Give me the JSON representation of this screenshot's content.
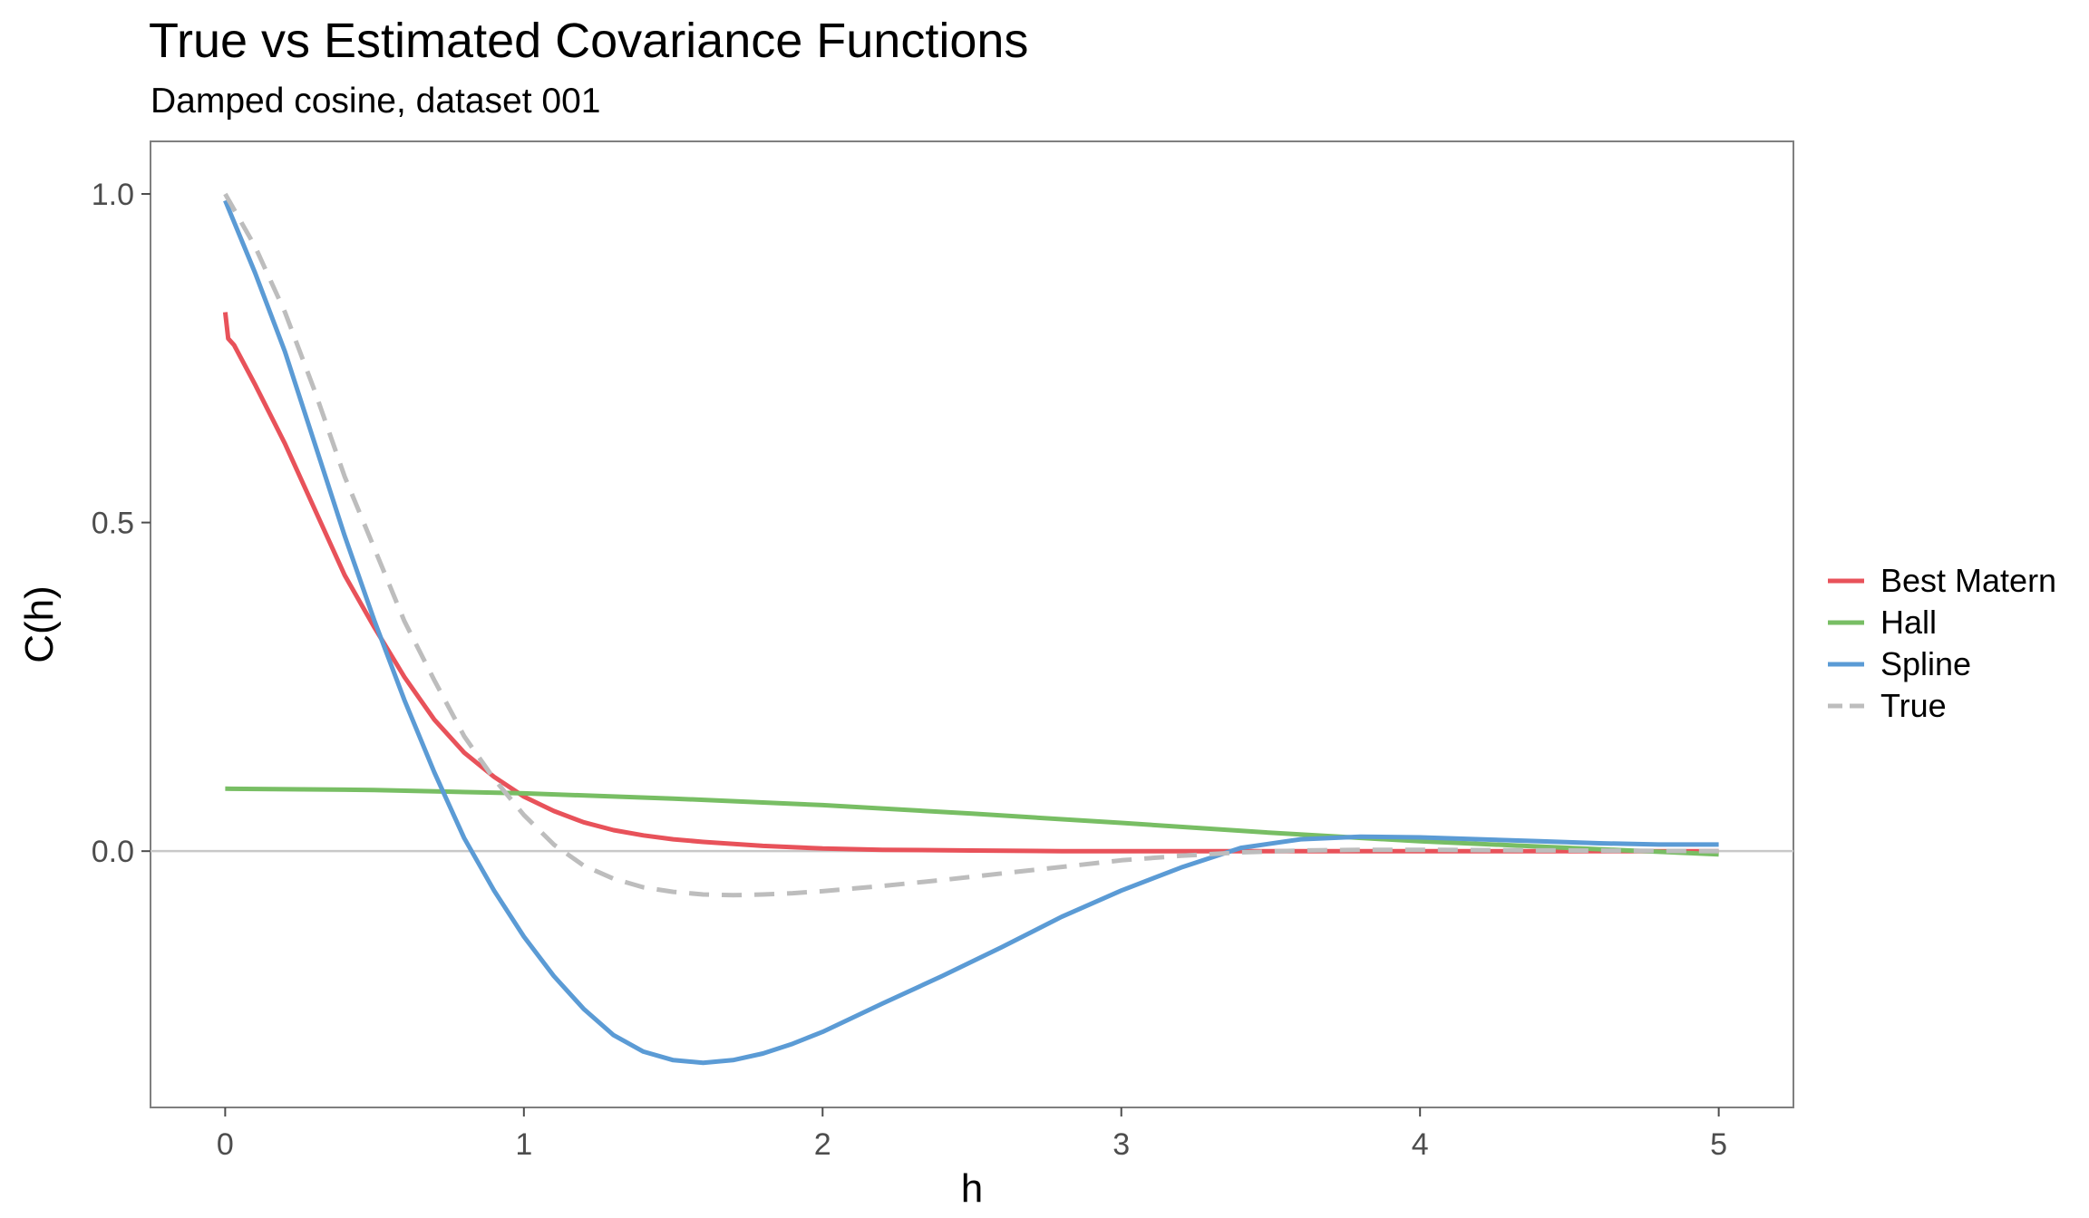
{
  "chart_data": {
    "type": "line",
    "title": "True vs Estimated Covariance Functions",
    "subtitle": "Damped cosine, dataset 001",
    "xlabel": "h",
    "ylabel": "C(h)",
    "xlim": [
      -0.25,
      5.25
    ],
    "ylim": [
      -0.39,
      1.08
    ],
    "xticks": [
      0,
      1,
      2,
      3,
      4,
      5
    ],
    "xtick_labels": [
      "0",
      "1",
      "2",
      "3",
      "4",
      "5"
    ],
    "yticks": [
      0.0,
      0.5,
      1.0
    ],
    "ytick_labels": [
      "0.0",
      "0.5",
      "1.0"
    ],
    "hline": 0,
    "grid": false,
    "legend_position": "right",
    "series": [
      {
        "name": "Best Matern",
        "color": "#E8525A",
        "dash": "solid",
        "x": [
          0.0,
          0.01,
          0.03,
          0.1,
          0.2,
          0.3,
          0.4,
          0.5,
          0.6,
          0.7,
          0.8,
          0.9,
          1.0,
          1.1,
          1.2,
          1.3,
          1.4,
          1.5,
          1.6,
          1.8,
          2.0,
          2.2,
          2.5,
          2.8,
          3.0,
          3.5,
          4.0,
          4.5,
          5.0
        ],
        "y": [
          0.82,
          0.78,
          0.77,
          0.71,
          0.62,
          0.52,
          0.42,
          0.34,
          0.265,
          0.2,
          0.15,
          0.113,
          0.083,
          0.061,
          0.044,
          0.032,
          0.024,
          0.018,
          0.014,
          0.008,
          0.004,
          0.002,
          0.001,
          0.0,
          0.0,
          0.0,
          0.0,
          0.0,
          0.0
        ]
      },
      {
        "name": "Hall",
        "color": "#78BE64",
        "dash": "solid",
        "x": [
          0.0,
          0.5,
          1.0,
          1.5,
          2.0,
          2.5,
          3.0,
          3.5,
          4.0,
          4.5,
          5.0
        ],
        "y": [
          0.095,
          0.093,
          0.088,
          0.08,
          0.07,
          0.057,
          0.043,
          0.028,
          0.015,
          0.005,
          -0.005
        ]
      },
      {
        "name": "Spline",
        "color": "#5B9BD5",
        "dash": "solid",
        "x": [
          0.0,
          0.1,
          0.2,
          0.3,
          0.4,
          0.5,
          0.6,
          0.7,
          0.8,
          0.9,
          1.0,
          1.1,
          1.2,
          1.3,
          1.4,
          1.5,
          1.6,
          1.7,
          1.8,
          1.9,
          2.0,
          2.2,
          2.4,
          2.6,
          2.8,
          3.0,
          3.2,
          3.4,
          3.6,
          3.8,
          4.0,
          4.2,
          4.4,
          4.6,
          4.8,
          5.0
        ],
        "y": [
          0.99,
          0.88,
          0.76,
          0.62,
          0.48,
          0.35,
          0.23,
          0.12,
          0.02,
          -0.06,
          -0.13,
          -0.19,
          -0.24,
          -0.28,
          -0.305,
          -0.318,
          -0.322,
          -0.318,
          -0.308,
          -0.293,
          -0.275,
          -0.232,
          -0.19,
          -0.146,
          -0.1,
          -0.06,
          -0.025,
          0.005,
          0.018,
          0.022,
          0.021,
          0.018,
          0.015,
          0.012,
          0.01,
          0.01
        ]
      },
      {
        "name": "True",
        "color": "#BDBDBD",
        "dash": "dashed",
        "x": [
          0.0,
          0.1,
          0.2,
          0.3,
          0.4,
          0.5,
          0.6,
          0.7,
          0.8,
          0.9,
          1.0,
          1.1,
          1.2,
          1.3,
          1.4,
          1.5,
          1.6,
          1.7,
          1.8,
          1.9,
          2.0,
          2.2,
          2.4,
          2.6,
          2.8,
          3.0,
          3.2,
          3.4,
          3.6,
          3.8,
          4.0,
          4.5,
          5.0
        ],
        "y": [
          1.0,
          0.92,
          0.82,
          0.7,
          0.57,
          0.46,
          0.35,
          0.26,
          0.175,
          0.11,
          0.055,
          0.01,
          -0.022,
          -0.042,
          -0.055,
          -0.062,
          -0.066,
          -0.067,
          -0.066,
          -0.064,
          -0.061,
          -0.053,
          -0.044,
          -0.034,
          -0.024,
          -0.014,
          -0.007,
          -0.002,
          0.001,
          0.002,
          0.002,
          0.001,
          0.0
        ]
      }
    ]
  }
}
